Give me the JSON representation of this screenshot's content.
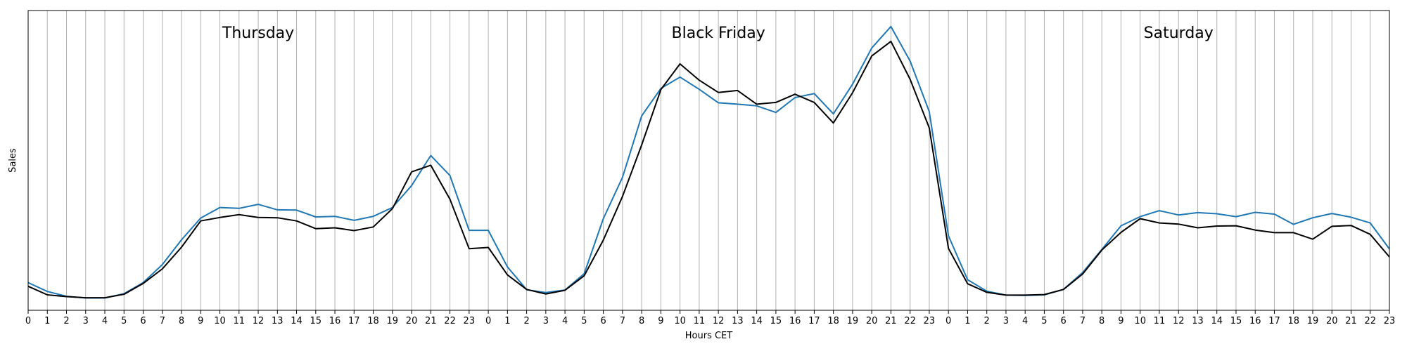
{
  "chart_data": {
    "type": "line",
    "xlabel": "Hours CET",
    "ylabel": "Sales",
    "grid": "vertical",
    "tick_labels": [
      "0",
      "1",
      "2",
      "3",
      "4",
      "5",
      "6",
      "7",
      "8",
      "9",
      "10",
      "11",
      "12",
      "13",
      "14",
      "15",
      "16",
      "17",
      "18",
      "19",
      "20",
      "21",
      "22",
      "23",
      "0",
      "1",
      "2",
      "3",
      "4",
      "5",
      "6",
      "7",
      "8",
      "9",
      "10",
      "11",
      "12",
      "13",
      "14",
      "15",
      "16",
      "17",
      "18",
      "19",
      "20",
      "21",
      "22",
      "23",
      "0",
      "1",
      "2",
      "3",
      "4",
      "5",
      "6",
      "7",
      "8",
      "9",
      "10",
      "11",
      "12",
      "13",
      "14",
      "15",
      "16",
      "17",
      "18",
      "19",
      "20",
      "21",
      "22",
      "23"
    ],
    "annotations": [
      {
        "text": "Thursday",
        "x": 12
      },
      {
        "text": "Black Friday",
        "x": 36
      },
      {
        "text": "Saturday",
        "x": 60
      }
    ],
    "ylim": [
      0,
      105
    ],
    "series": [
      {
        "color": "#1f77b4",
        "values": [
          9.7,
          6.6,
          4.9,
          4.3,
          4.3,
          5.8,
          9.7,
          16,
          24.7,
          32.3,
          36,
          35.7,
          37.1,
          35.2,
          35.1,
          32.7,
          32.9,
          31.5,
          32.9,
          36,
          43.7,
          54.2,
          47.2,
          28,
          28,
          15.2,
          7.2,
          6.2,
          7.1,
          12.8,
          32.1,
          46.6,
          68.1,
          77.7,
          81.7,
          77.4,
          72.7,
          72.2,
          71.6,
          69.3,
          74.5,
          75.9,
          68.8,
          79.2,
          91.9,
          99.4,
          87.3,
          69.6,
          26.1,
          10.7,
          6.7,
          5.3,
          5.2,
          5.4,
          7.3,
          13.2,
          21.3,
          29.6,
          32.8,
          34.9,
          33.4,
          34.2,
          33.8,
          32.8,
          34.3,
          33.7,
          30.1,
          32.4,
          33.9,
          32.6,
          30.6,
          21.5
        ],
        "values_note_removed": true
      },
      {
        "color": "#000000",
        "values": [
          8.4,
          5.4,
          4.8,
          4.4,
          4.4,
          5.6,
          9.4,
          14.5,
          22.1,
          31.3,
          32.5,
          33.5,
          32.5,
          32.4,
          31.3,
          28.6,
          28.9,
          27.9,
          29.2,
          35.6,
          48.5,
          50.8,
          38.9,
          21.6,
          22,
          12.4,
          7.3,
          5.7,
          7,
          12.1,
          24.6,
          39.9,
          57.9,
          77.3,
          86.3,
          80.6,
          76.3,
          77,
          72.2,
          72.8,
          75.7,
          72.8,
          65.6,
          76.2,
          89.1,
          94.2,
          80.9,
          63.9,
          21.7,
          9.3,
          6.3,
          5.3,
          5.3,
          5.5,
          7.3,
          12.7,
          21.1,
          27.3,
          32.1,
          30.6,
          30.2,
          28.9,
          29.5,
          29.6,
          28.1,
          27.2,
          27.2,
          24.9,
          29.4,
          29.7,
          26.6,
          18.7
        ]
      }
    ]
  }
}
